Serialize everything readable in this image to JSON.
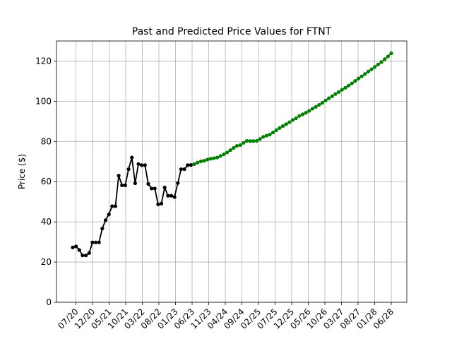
{
  "chart_data": {
    "type": "line",
    "title": "Past and Predicted Price Values for FTNT",
    "xlabel": "",
    "ylabel": "Price ($)",
    "ylim": [
      0,
      130
    ],
    "yticks": [
      0,
      20,
      40,
      60,
      80,
      100,
      120
    ],
    "grid": true,
    "x_tick_labels": [
      "07/20",
      "12/20",
      "05/21",
      "10/21",
      "03/22",
      "08/22",
      "01/23",
      "06/23",
      "11/23",
      "04/24",
      "09/24",
      "02/25",
      "07/25",
      "12/25",
      "05/26",
      "10/26",
      "03/27",
      "08/27",
      "01/28",
      "06/28"
    ],
    "series": [
      {
        "color": "#000000",
        "marker": "circle",
        "values": [
          27.3,
          27.8,
          26.0,
          23.3,
          23.3,
          24.5,
          29.8,
          29.8,
          29.8,
          36.7,
          40.8,
          43.7,
          47.8,
          47.8,
          63.0,
          58.2,
          58.2,
          66.2,
          72.0,
          59.2,
          68.8,
          68.2,
          68.2,
          58.9,
          56.6,
          56.6,
          48.7,
          49.1,
          57.1,
          53.0,
          53.0,
          52.4,
          59.3,
          66.2,
          66.2,
          68.2,
          68.3,
          68.7
        ]
      },
      {
        "color": "#008000",
        "marker": "circle",
        "values": [
          68.7,
          69.5,
          70.1,
          70.4,
          71.0,
          71.4,
          71.7,
          72.0,
          72.8,
          73.6,
          74.5,
          75.7,
          76.8,
          77.8,
          78.2,
          79.3,
          80.3,
          80.2,
          80.2,
          80.3,
          81.2,
          82.3,
          82.9,
          83.4,
          84.5,
          85.6,
          86.7,
          87.7,
          88.6,
          89.6,
          90.7,
          91.5,
          92.7,
          93.5,
          94.3,
          95.2,
          96.3,
          97.2,
          98.2,
          99.2,
          100.4,
          101.5,
          102.5,
          103.6,
          104.6,
          105.7,
          106.7,
          107.8,
          108.9,
          110.1,
          111.3,
          112.4,
          113.6,
          114.8,
          115.9,
          117.1,
          118.3,
          119.5,
          120.9,
          122.3,
          123.9
        ]
      }
    ]
  }
}
